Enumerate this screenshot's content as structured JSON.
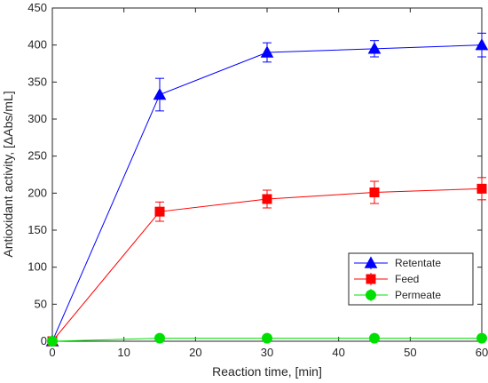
{
  "chart_data": {
    "type": "line",
    "title": "",
    "xlabel": "Reaction time, [min]",
    "ylabel": "Antioxidant activity, [ΔAbs/mL]",
    "xlim": [
      0,
      60
    ],
    "ylim": [
      0,
      450
    ],
    "xticks": [
      0,
      10,
      20,
      30,
      40,
      50,
      60
    ],
    "yticks": [
      0,
      50,
      100,
      150,
      200,
      250,
      300,
      350,
      400,
      450
    ],
    "grid": false,
    "legend_position": "bottom-right",
    "series": [
      {
        "name": "Retentate",
        "color": "#0000ff",
        "marker": "triangle",
        "x": [
          0,
          15,
          30,
          45,
          60
        ],
        "y": [
          0,
          333,
          390,
          395,
          400
        ],
        "err": [
          0,
          22,
          13,
          11,
          16
        ]
      },
      {
        "name": "Feed",
        "color": "#ff0000",
        "marker": "square",
        "x": [
          0,
          15,
          30,
          45,
          60
        ],
        "y": [
          0,
          175,
          192,
          201,
          206
        ],
        "err": [
          0,
          13,
          12,
          15,
          15
        ]
      },
      {
        "name": "Permeate",
        "color": "#00e000",
        "marker": "circle",
        "x": [
          0,
          15,
          30,
          45,
          60
        ],
        "y": [
          0,
          4,
          4,
          4,
          4
        ],
        "err": [
          0,
          1,
          1,
          1,
          1
        ]
      }
    ]
  }
}
